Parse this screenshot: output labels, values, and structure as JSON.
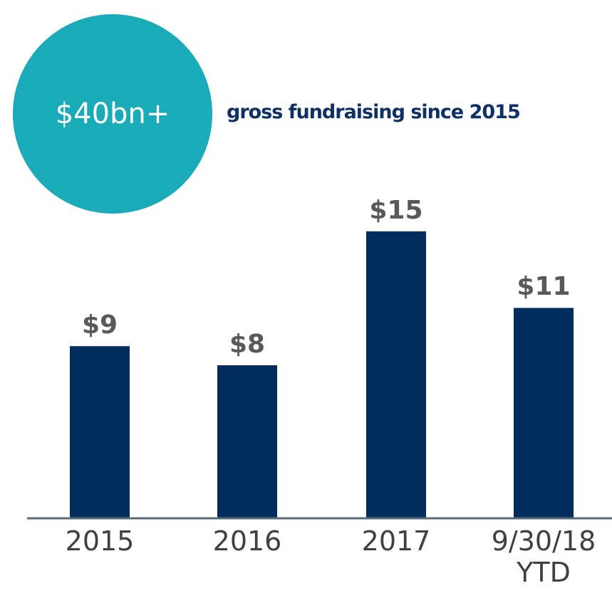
{
  "chart_data": {
    "type": "bar",
    "annotations": [
      "$40bn+",
      "gross fundraising since 2015"
    ],
    "categories": [
      "2015",
      "2016",
      "2017",
      "9/30/18 YTD"
    ],
    "values": [
      9,
      8,
      15,
      11
    ],
    "value_labels": [
      "$9",
      "$8",
      "$15",
      "$11"
    ],
    "color": "#002d5c"
  }
}
